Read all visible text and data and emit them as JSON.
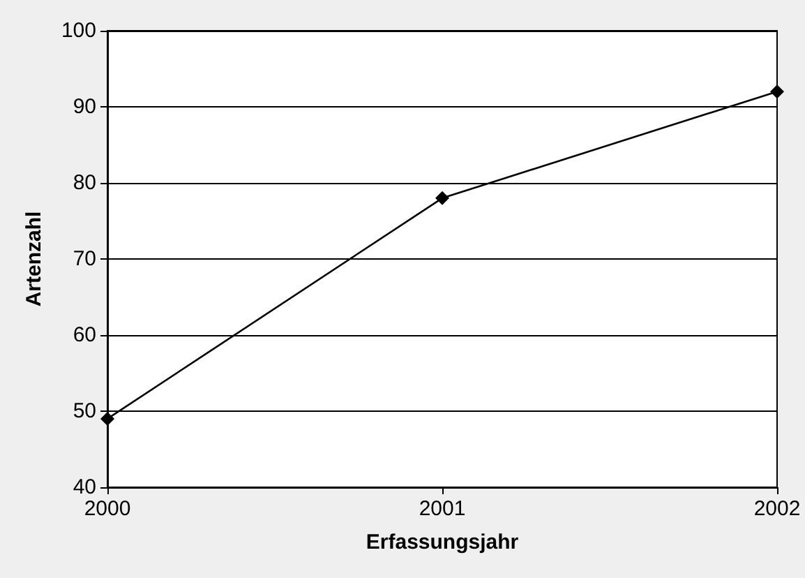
{
  "chart_data": {
    "type": "line",
    "xlabel": "Erfassungsjahr",
    "ylabel": "Artenzahl",
    "x": [
      2000,
      2001,
      2002
    ],
    "series": [
      {
        "color": "#000000",
        "values": [
          49,
          78,
          92
        ]
      }
    ],
    "xlim": [
      2000,
      2002
    ],
    "xticks": [
      2000,
      2001,
      2002
    ],
    "ylim": [
      40,
      100
    ],
    "yticks": [
      40,
      50,
      60,
      70,
      80,
      90,
      100
    ],
    "grid": "y",
    "marker": "diamond",
    "line_style": "solid"
  }
}
